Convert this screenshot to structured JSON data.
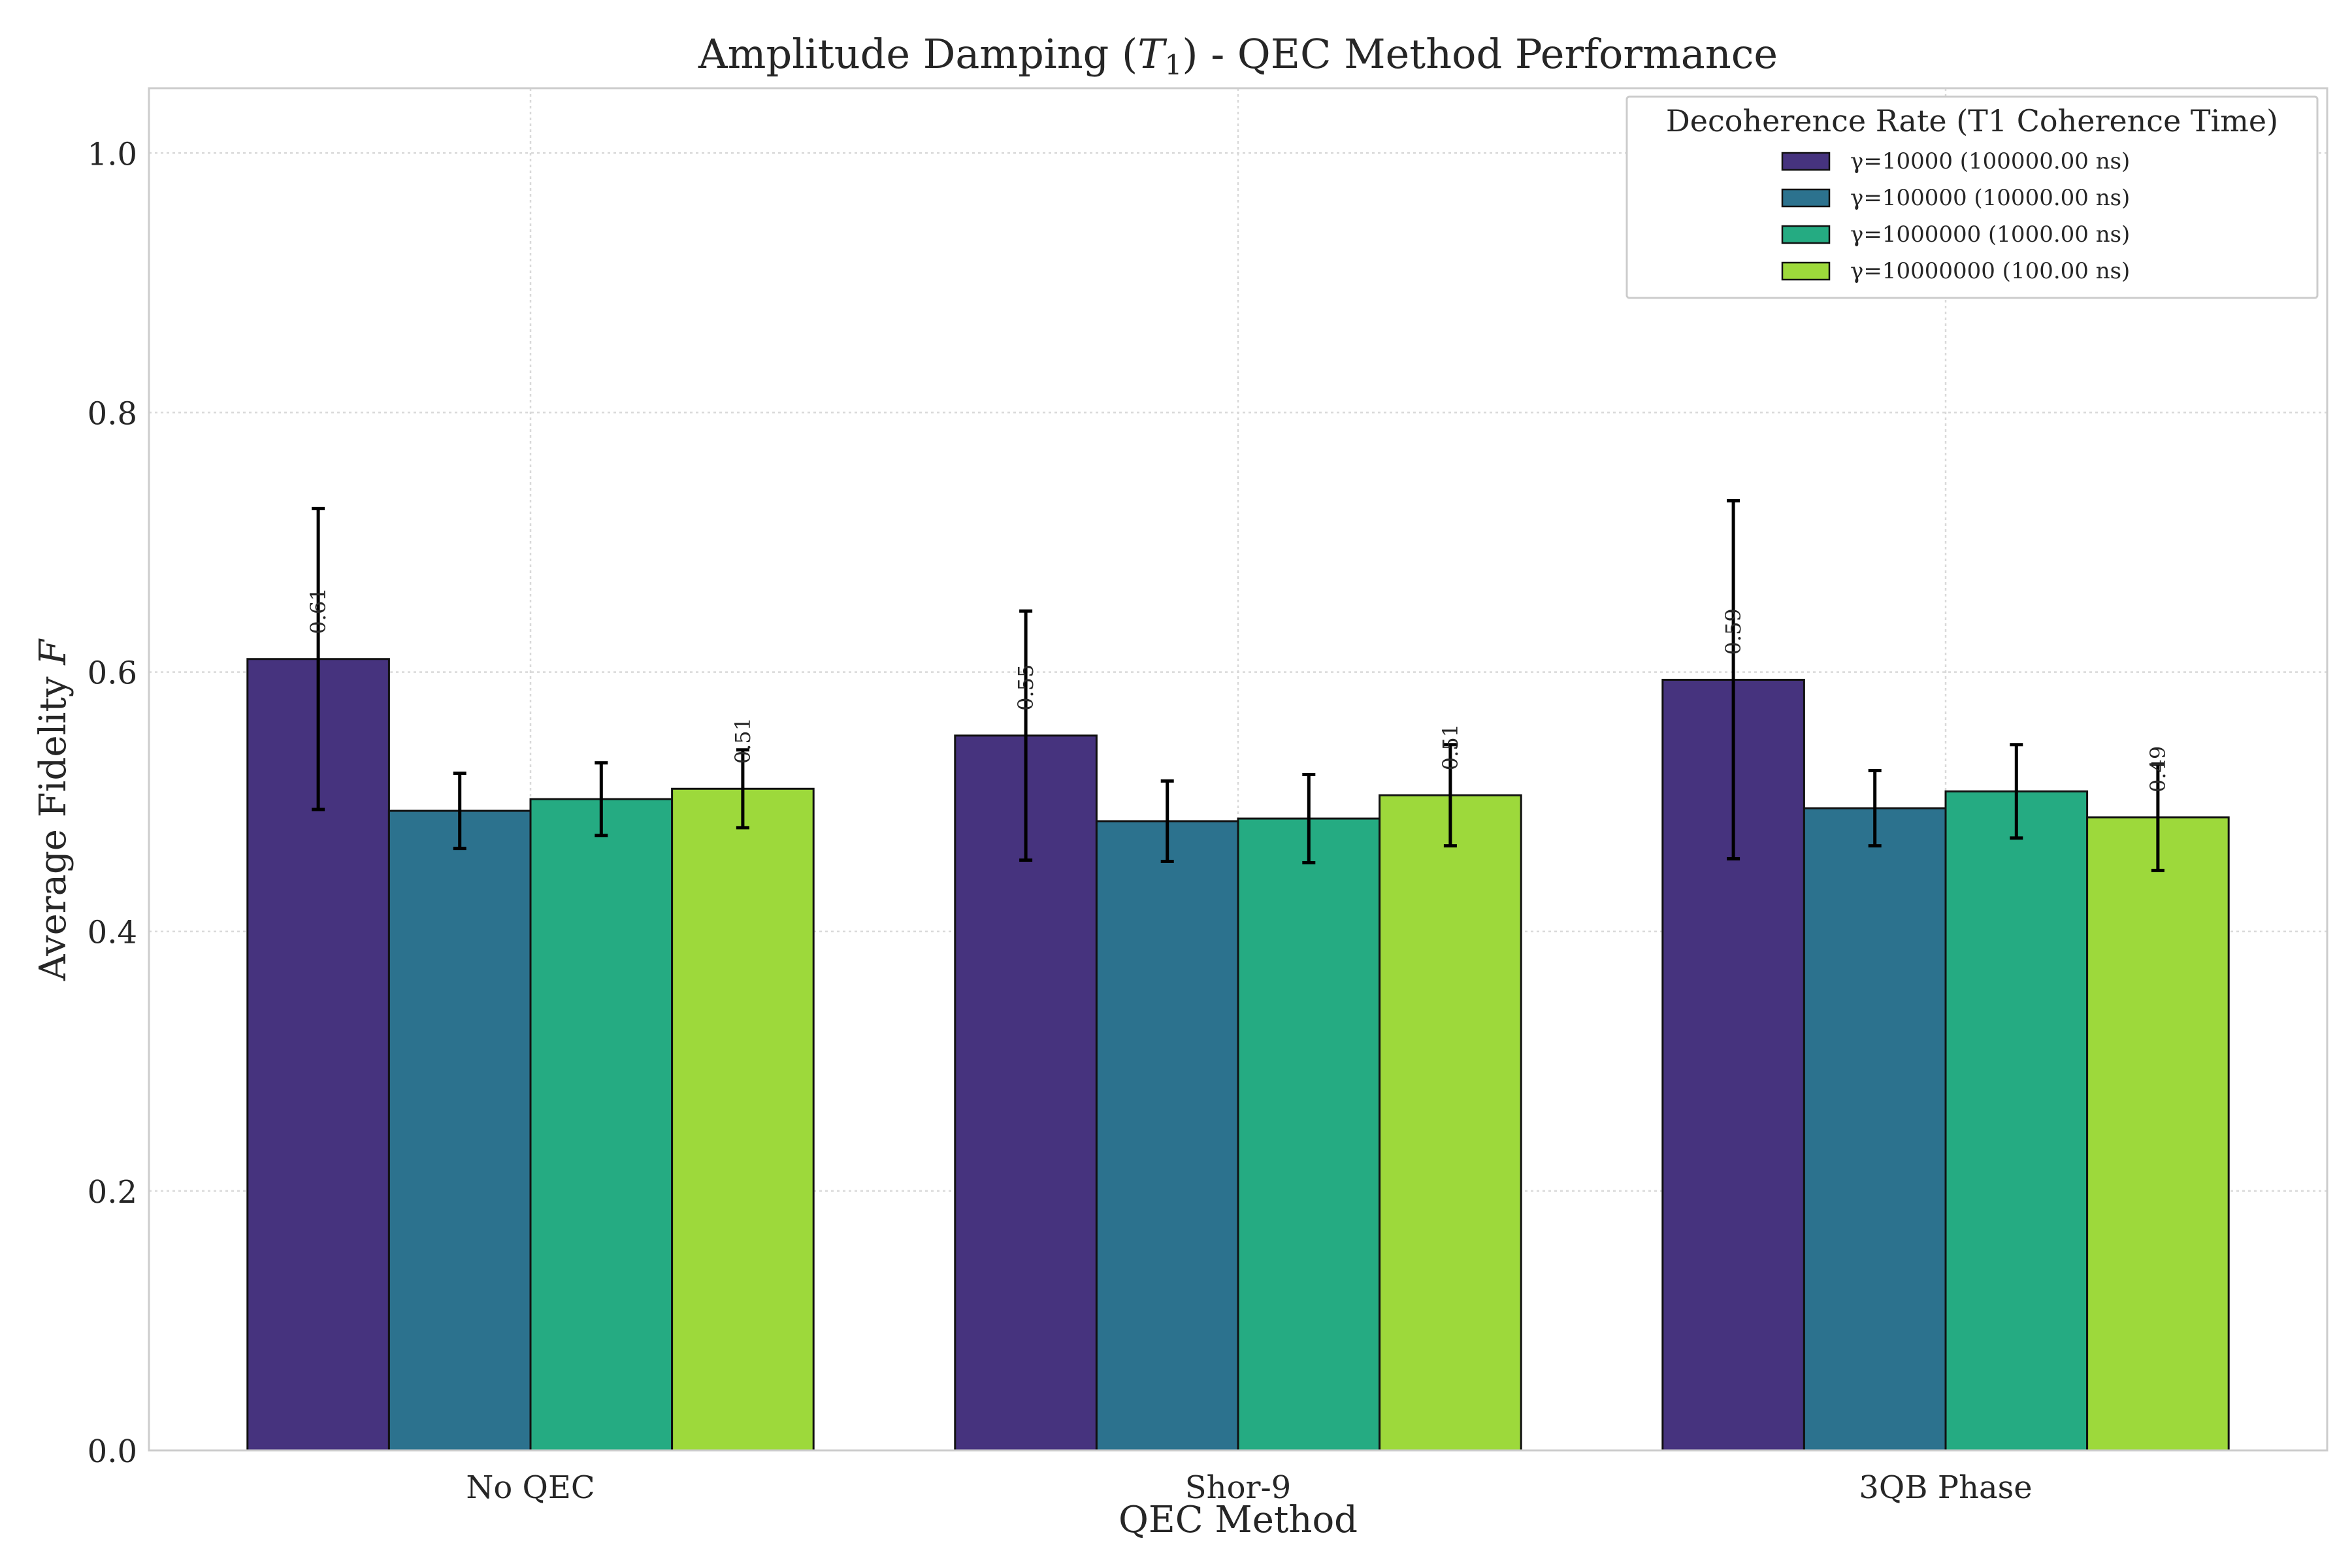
{
  "chart_data": {
    "type": "bar",
    "title_main": "Amplitude Damping (",
    "title_symbol": "T",
    "title_subscript": "1",
    "title_tail": ") - QEC Method Performance",
    "xlabel": "QEC Method",
    "ylabel_text": "Average Fidelity ",
    "ylabel_symbol": "F",
    "ylim": [
      0.0,
      1.05
    ],
    "yticks": [
      0.0,
      0.2,
      0.4,
      0.6,
      0.8,
      1.0
    ],
    "ytick_labels": [
      "0.0",
      "0.2",
      "0.4",
      "0.6",
      "0.8",
      "1.0"
    ],
    "grid": true,
    "categories": [
      "No QEC",
      "Shor-9",
      "3QB Phase"
    ],
    "legend_title": "Decoherence Rate (T1 Coherence Time)",
    "legend_position": "top-right",
    "series": [
      {
        "name": "γ=10000 (100000.00 ns)",
        "color": "#46337e",
        "values": [
          0.61,
          0.551,
          0.594
        ],
        "errors": [
          0.116,
          0.096,
          0.138
        ],
        "labels": [
          "0.61",
          "0.55",
          "0.59"
        ]
      },
      {
        "name": "γ=100000 (10000.00 ns)",
        "color": "#2c728e",
        "values": [
          0.493,
          0.485,
          0.495
        ],
        "errors": [
          0.029,
          0.031,
          0.029
        ],
        "labels": null
      },
      {
        "name": "γ=1000000 (1000.00 ns)",
        "color": "#25ab82",
        "values": [
          0.502,
          0.487,
          0.508
        ],
        "errors": [
          0.028,
          0.034,
          0.036
        ],
        "labels": null
      },
      {
        "name": "γ=10000000 (100.00 ns)",
        "color": "#9dd93b",
        "values": [
          0.51,
          0.505,
          0.488
        ],
        "errors": [
          0.03,
          0.039,
          0.041
        ],
        "labels": [
          "0.51",
          "0.51",
          "0.49"
        ]
      }
    ]
  }
}
